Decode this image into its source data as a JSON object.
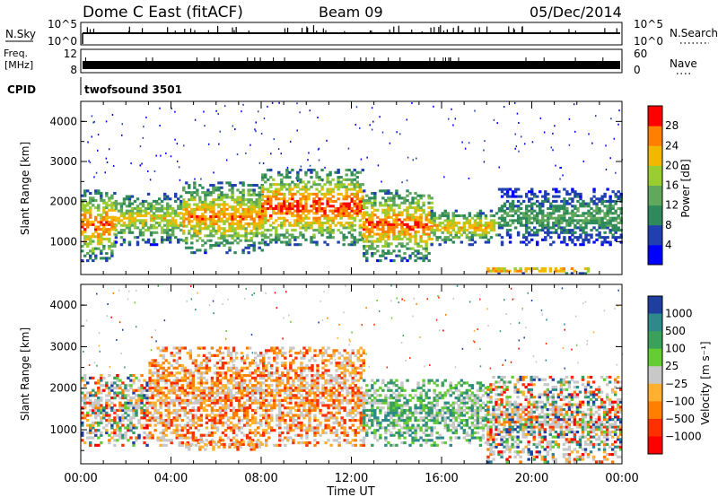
{
  "header": {
    "radar": "Dome C East (fitACF)",
    "beam": "Beam 09",
    "date": "05/Dec/2014"
  },
  "strips": {
    "nsky_label": "N.Sky",
    "nsky_ticks": [
      "10^5",
      "10^0"
    ],
    "nsearch_label": "N.Search",
    "nsearch_ticks": [
      "10^5",
      "10^0"
    ],
    "freq_label": "Freq.",
    "freq_unit": "[MHz]",
    "freq_ticks": [
      "12",
      "8"
    ],
    "nave_label": "Nave",
    "nave_ticks": [
      "60",
      "0"
    ],
    "cpid_label": "CPID",
    "cpid_value": "twofsound 3501"
  },
  "axes": {
    "y_label": "Slant Range [km]",
    "y_ticks": [
      "1000",
      "2000",
      "3000",
      "4000"
    ],
    "x_ticks": [
      "00:00",
      "04:00",
      "08:00",
      "12:00",
      "16:00",
      "20:00",
      "00:00"
    ],
    "x_label": "Time UT"
  },
  "colorbars": {
    "power_label": "Power [dB]",
    "power_ticks": [
      "4",
      "8",
      "12",
      "16",
      "20",
      "24",
      "28"
    ],
    "velocity_label": "Velocity [m s⁻¹]",
    "velocity_ticks": [
      "1000",
      "500",
      "100",
      "25",
      "−25",
      "−100",
      "−500",
      "−1000"
    ]
  },
  "chart_data": [
    {
      "type": "heatmap",
      "title": "Power",
      "xlabel": "Time UT",
      "ylabel": "Slant Range [km]",
      "xlim": [
        "00:00",
        "24:00"
      ],
      "ylim": [
        180,
        4500
      ],
      "colorbar": {
        "label": "Power [dB]",
        "range": [
          0,
          30
        ],
        "ticks": [
          4,
          8,
          12,
          16,
          20,
          24,
          28
        ],
        "colors": [
          "#0000ff",
          "#2040b0",
          "#2e8a5a",
          "#5fa85c",
          "#9acd32",
          "#f2b800",
          "#ff8000",
          "#ff0000"
        ]
      },
      "regions": [
        {
          "t": [
            0.0,
            1.5
          ],
          "r": [
            500,
            2300
          ],
          "level": "mixed",
          "peak_db": 26
        },
        {
          "t": [
            1.5,
            4.5
          ],
          "r": [
            900,
            2200
          ],
          "level": "mixed",
          "peak_db": 20
        },
        {
          "t": [
            4.5,
            8.0
          ],
          "r": [
            700,
            2500
          ],
          "level": "mixed",
          "peak_db": 24
        },
        {
          "t": [
            8.0,
            12.5
          ],
          "r": [
            900,
            2800
          ],
          "level": "strong",
          "peak_db": 28
        },
        {
          "t": [
            12.5,
            15.5
          ],
          "r": [
            500,
            2300
          ],
          "level": "strong",
          "peak_db": 26
        },
        {
          "t": [
            15.5,
            18.5
          ],
          "r": [
            900,
            1800
          ],
          "level": "mixed",
          "peak_db": 22
        },
        {
          "t": [
            18.5,
            24.0
          ],
          "r": [
            900,
            2300
          ],
          "level": "weak",
          "peak_db": 18
        },
        {
          "t": [
            18.0,
            22.5
          ],
          "r": [
            180,
            350
          ],
          "level": "strong",
          "peak_db": 28
        }
      ]
    },
    {
      "type": "heatmap",
      "title": "Velocity",
      "xlabel": "Time UT",
      "ylabel": "Slant Range [km]",
      "xlim": [
        "00:00",
        "24:00"
      ],
      "ylim": [
        180,
        4500
      ],
      "colorbar": {
        "label": "Velocity [m s⁻¹]",
        "ticks": [
          1000,
          500,
          100,
          25,
          -25,
          -100,
          -500,
          -1000
        ],
        "colors": [
          "#1e3fa0",
          "#2e8a8a",
          "#3aa05a",
          "#66cc33",
          "#c8c8c8",
          "#ffb030",
          "#ff8000",
          "#ff3000",
          "#ff0000"
        ]
      },
      "regions": [
        {
          "t": [
            0.0,
            3.0
          ],
          "r": [
            600,
            2300
          ],
          "velocity": "mixed"
        },
        {
          "t": [
            3.0,
            12.5
          ],
          "r": [
            600,
            3000
          ],
          "velocity": "negative",
          "typical_ms": -300
        },
        {
          "t": [
            4.5,
            8.0
          ],
          "r": [
            500,
            700
          ],
          "velocity": "negative",
          "typical_ms": -400
        },
        {
          "t": [
            12.5,
            18.0
          ],
          "r": [
            600,
            2200
          ],
          "velocity": "positive",
          "typical_ms": 300
        },
        {
          "t": [
            18.0,
            24.0
          ],
          "r": [
            200,
            2300
          ],
          "velocity": "mixed"
        }
      ]
    }
  ]
}
